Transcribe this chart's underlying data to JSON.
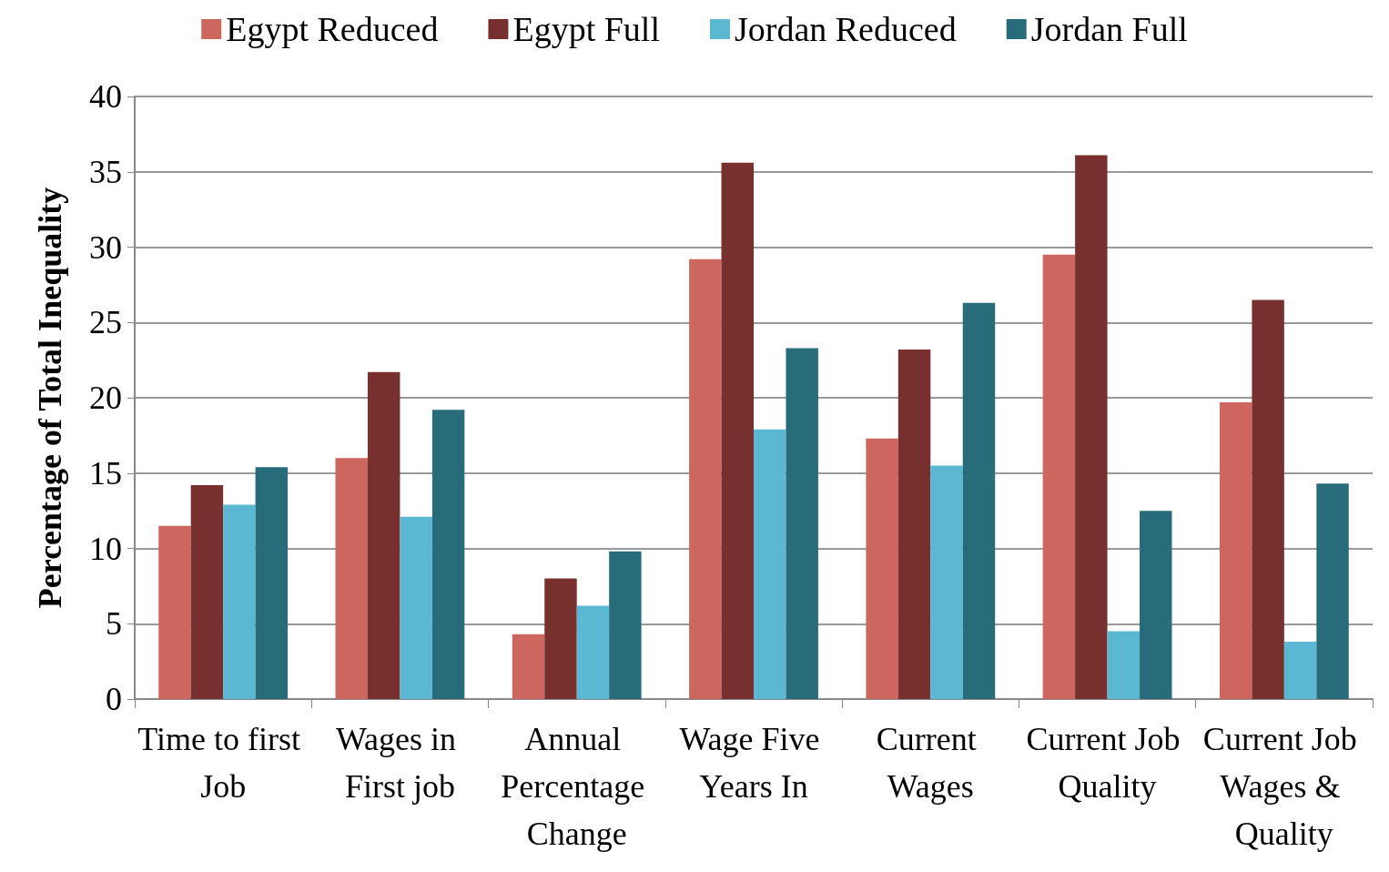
{
  "chart_data": {
    "type": "bar",
    "ylabel": "Percentage of Total Inequality",
    "categories": [
      "Time to first Job",
      "Wages in First job",
      "Annual Percentage Change",
      "Wage Five Years In",
      "Current Wages",
      "Current Job Quality",
      "Current Job Wages & Quality"
    ],
    "series": [
      {
        "name": "Egypt Reduced",
        "color": "#cd665e",
        "values": [
          11.5,
          16.0,
          4.3,
          29.2,
          17.3,
          29.5,
          19.7
        ]
      },
      {
        "name": "Egypt Full",
        "color": "#77302e",
        "values": [
          14.2,
          21.7,
          8.0,
          35.6,
          23.2,
          36.1,
          26.5
        ]
      },
      {
        "name": "Jordan Reduced",
        "color": "#5bb8d2",
        "values": [
          12.9,
          12.1,
          6.2,
          17.9,
          15.5,
          4.5,
          3.8
        ]
      },
      {
        "name": "Jordan Full",
        "color": "#286b7b",
        "values": [
          15.4,
          19.2,
          9.8,
          23.3,
          26.3,
          12.5,
          14.3
        ]
      }
    ],
    "ylim": [
      0,
      40
    ],
    "yticks": [
      0,
      5,
      10,
      15,
      20,
      25,
      30,
      35,
      40
    ],
    "grid": "y",
    "legend": "top"
  }
}
